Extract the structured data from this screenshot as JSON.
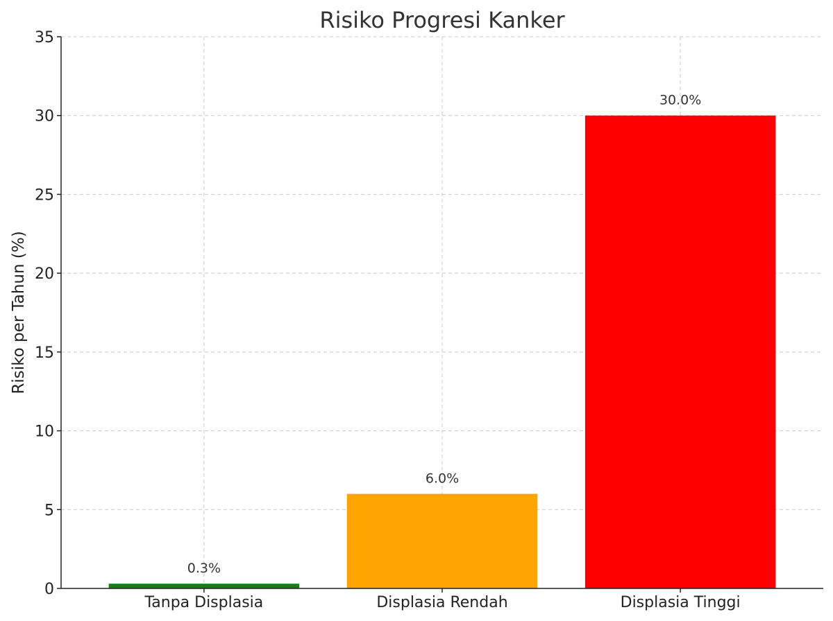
{
  "chart_data": {
    "type": "bar",
    "title": "Risiko Progresi Kanker",
    "xlabel": "",
    "ylabel": "Risiko per Tahun (%)",
    "categories": [
      "Tanpa Displasia",
      "Displasia Rendah",
      "Displasia Tinggi"
    ],
    "values": [
      0.3,
      6.0,
      30.0
    ],
    "data_labels": [
      "0.3%",
      "6.0%",
      "30.0%"
    ],
    "colors": [
      "#138013",
      "#ffa500",
      "#ff0000"
    ],
    "ylim": [
      0,
      35
    ],
    "yticks": [
      0,
      5,
      10,
      15,
      20,
      25,
      30,
      35
    ],
    "grid": true,
    "legend": "none"
  }
}
